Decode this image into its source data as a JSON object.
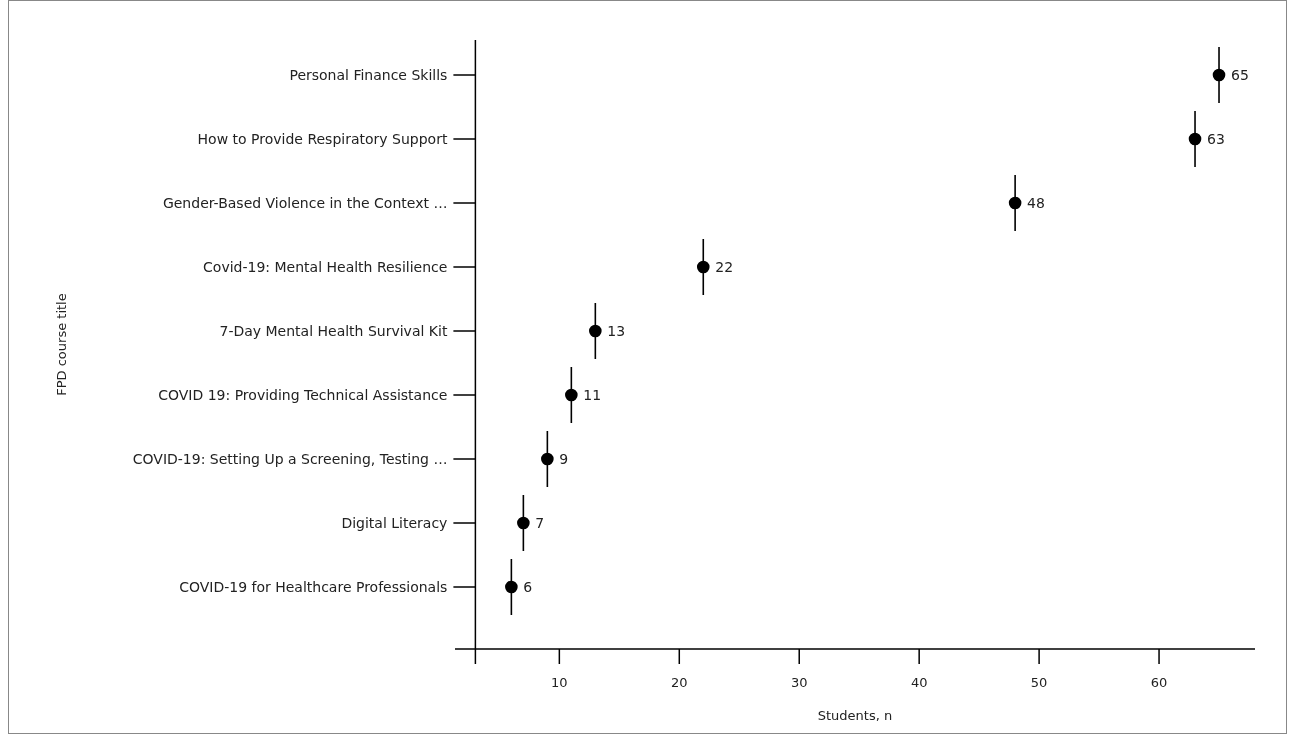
{
  "chart_data": {
    "type": "scatter",
    "orientation": "horizontal",
    "xlabel": "Students, n",
    "ylabel": "FPD course title",
    "categories": [
      "Personal Finance Skills",
      "How to Provide Respiratory Support",
      "Gender-Based Violence in the Context …",
      "Covid-19: Mental Health Resilience",
      "7-Day Mental Health Survival Kit",
      "COVID 19: Providing Technical Assistance",
      "COVID-19: Setting Up a Screening, Testing …",
      "Digital Literacy",
      "COVID-19 for Healthcare Professionals"
    ],
    "values": [
      65,
      63,
      48,
      22,
      13,
      11,
      9,
      7,
      6
    ],
    "color": "#000000",
    "marker": "circle",
    "data_labels": true,
    "xlim": [
      1.3,
      68
    ],
    "xticks": [
      {
        "value": 3,
        "label": null
      },
      10,
      20,
      30,
      40,
      50,
      60
    ]
  }
}
